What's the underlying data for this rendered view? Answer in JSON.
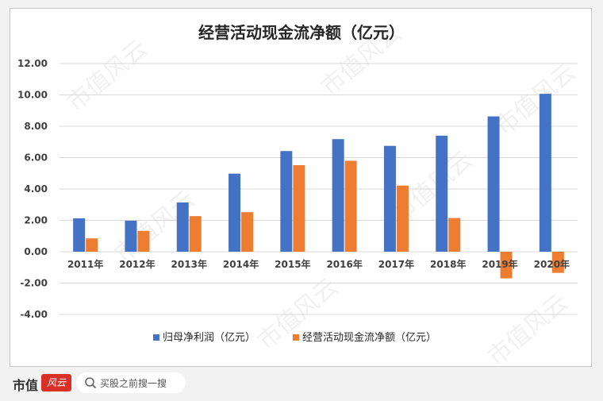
{
  "chart_data": {
    "type": "bar",
    "title": "经营活动现金流净额（亿元）",
    "categories": [
      "2011年",
      "2012年",
      "2013年",
      "2014年",
      "2015年",
      "2016年",
      "2017年",
      "2018年",
      "2019年",
      "2020年"
    ],
    "series": [
      {
        "name": "归母净利润（亿元）",
        "color": "#4472c4",
        "values": [
          2.13,
          1.98,
          3.14,
          4.98,
          6.42,
          7.18,
          6.75,
          7.4,
          8.63,
          10.07
        ]
      },
      {
        "name": "经营活动现金流净额（亿元）",
        "color": "#ed7d31",
        "values": [
          0.85,
          1.33,
          2.27,
          2.52,
          5.52,
          5.8,
          4.22,
          2.15,
          -1.7,
          -1.35
        ]
      }
    ],
    "yticks": [
      "12.00",
      "10.00",
      "8.00",
      "6.00",
      "4.00",
      "2.00",
      "0.00",
      "-2.00",
      "-4.00"
    ],
    "ylim": [
      -4,
      12
    ],
    "grid": true,
    "legend_position": "bottom"
  },
  "footer": {
    "brand": "市值",
    "brand_mark": "风云",
    "search_placeholder": "买股之前搜一搜"
  },
  "watermark": "市值风云"
}
